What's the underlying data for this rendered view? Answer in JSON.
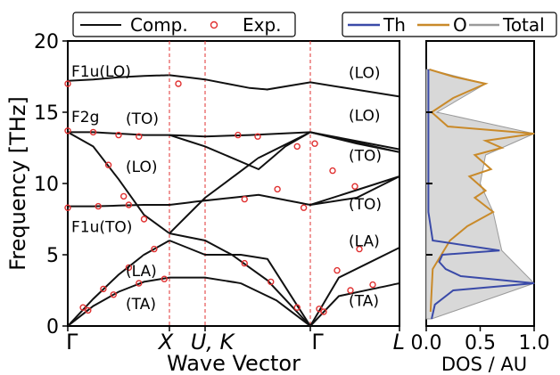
{
  "chart_data": [
    {
      "type": "line",
      "xlabel": "Wave Vector",
      "ylabel": "Frequency [THz]",
      "ylim": [
        0,
        20
      ],
      "yticks": [
        "0",
        "5",
        "10",
        "15",
        "20"
      ],
      "path_labels": [
        "Γ",
        "X",
        "U, K",
        "Γ",
        "L"
      ],
      "legend": {
        "placement": "top",
        "entries": [
          "Comp.",
          "Exp."
        ]
      },
      "annotations": [
        "F1u(LO)",
        "F2g",
        "(TO)",
        "(LO)",
        "F1u(TO)",
        "(LA)",
        "(TA)",
        "(LO)",
        "(LO)",
        "(TO)",
        "(TO)",
        "(LA)",
        "(TA)"
      ],
      "colors": {
        "computed": "#111111",
        "experimental": "#e03030",
        "guides": "#e03030"
      },
      "series": [
        {
          "name": "Comp.",
          "segments": [
            {
              "leg": "Γ-X",
              "x": [
                0,
                0.25,
                0.5,
                0.75,
                1
              ],
              "y": [
                17.2,
                17.3,
                17.45,
                17.55,
                17.6
              ]
            },
            {
              "leg": "Γ-X",
              "x": [
                0,
                0.25,
                0.5,
                0.75,
                1
              ],
              "y": [
                13.6,
                13.6,
                13.5,
                13.4,
                13.4
              ]
            },
            {
              "leg": "Γ-X",
              "x": [
                0,
                0.25,
                0.5,
                0.75,
                1
              ],
              "y": [
                13.6,
                12.6,
                10.3,
                7.8,
                6.5
              ]
            },
            {
              "leg": "Γ-X",
              "x": [
                0,
                0.25,
                0.5,
                0.75,
                1
              ],
              "y": [
                8.4,
                8.4,
                8.45,
                8.5,
                8.5
              ]
            },
            {
              "leg": "Γ-X",
              "x": [
                0,
                0.25,
                0.5,
                0.75,
                1
              ],
              "y": [
                0,
                1.9,
                3.6,
                5.0,
                6.0
              ]
            },
            {
              "leg": "Γ-X",
              "x": [
                0,
                0.25,
                0.5,
                0.75,
                1
              ],
              "y": [
                0,
                1.4,
                2.4,
                3.1,
                3.4
              ]
            }
          ]
        },
        {
          "name": "Exp.",
          "points": [
            {
              "x": 0.0,
              "y": 17.0
            },
            {
              "x": 0.0,
              "y": 13.7
            },
            {
              "x": 0.0,
              "y": 8.3
            },
            {
              "x": 0.25,
              "y": 13.6
            },
            {
              "x": 0.5,
              "y": 13.4
            },
            {
              "x": 0.7,
              "y": 13.3
            },
            {
              "x": 0.4,
              "y": 11.3
            },
            {
              "x": 0.55,
              "y": 9.1
            },
            {
              "x": 0.75,
              "y": 7.5
            },
            {
              "x": 0.3,
              "y": 8.4
            },
            {
              "x": 0.6,
              "y": 8.5
            },
            {
              "x": 0.15,
              "y": 1.3
            },
            {
              "x": 0.35,
              "y": 2.6
            },
            {
              "x": 0.6,
              "y": 4.1
            },
            {
              "x": 0.85,
              "y": 5.4
            },
            {
              "x": 0.2,
              "y": 1.1
            },
            {
              "x": 0.45,
              "y": 2.2
            },
            {
              "x": 0.7,
              "y": 3.0
            },
            {
              "x": 0.95,
              "y": 3.3
            },
            {
              "x": 1.45,
              "y": 13.4
            },
            {
              "x": 1.6,
              "y": 13.3
            },
            {
              "x": 1.9,
              "y": 12.6
            },
            {
              "x": 1.5,
              "y": 8.9
            },
            {
              "x": 1.75,
              "y": 9.6
            },
            {
              "x": 1.95,
              "y": 8.3
            },
            {
              "x": 1.5,
              "y": 4.4
            },
            {
              "x": 1.7,
              "y": 3.1
            },
            {
              "x": 1.9,
              "y": 1.3
            },
            {
              "x": 2.05,
              "y": 12.8
            },
            {
              "x": 2.25,
              "y": 10.9
            },
            {
              "x": 2.5,
              "y": 9.8
            },
            {
              "x": 2.1,
              "y": 1.2
            },
            {
              "x": 2.3,
              "y": 3.9
            },
            {
              "x": 2.55,
              "y": 5.4
            },
            {
              "x": 2.15,
              "y": 1.0
            },
            {
              "x": 2.45,
              "y": 2.5
            },
            {
              "x": 2.7,
              "y": 2.9
            },
            {
              "x": 1.05,
              "y": 17.0
            }
          ]
        }
      ]
    },
    {
      "type": "line",
      "xlabel": "DOS / AU",
      "xlim": [
        0,
        1
      ],
      "xticks": [
        "0.0",
        "0.5",
        "1.0"
      ],
      "ylim": [
        0,
        20
      ],
      "legend": {
        "placement": "top",
        "entries": [
          "Th",
          "O",
          "Total"
        ]
      },
      "colors": {
        "Th": "#3a4aa8",
        "O": "#c98a2a",
        "Total": "#9a9a9a",
        "fill": "#d8d8d8"
      },
      "series": [
        {
          "name": "Th",
          "y": [
            0.5,
            1.5,
            2.5,
            3.0,
            3.5,
            4.0,
            4.5,
            5.0,
            5.3,
            6.0,
            8.0,
            10.0,
            12.0,
            14.0,
            16.0,
            18.0
          ],
          "x": [
            0.05,
            0.08,
            0.25,
            1.0,
            0.32,
            0.18,
            0.12,
            0.15,
            0.68,
            0.06,
            0.02,
            0.02,
            0.02,
            0.02,
            0.02,
            0.02
          ]
        },
        {
          "name": "O",
          "y": [
            1.0,
            4.0,
            6.0,
            7.0,
            8.0,
            9.0,
            9.5,
            10.5,
            11.0,
            12.0,
            12.5,
            13.0,
            13.5,
            14.0,
            15.0,
            16.0,
            17.0,
            17.5,
            18.0
          ],
          "x": [
            0.04,
            0.06,
            0.22,
            0.38,
            0.62,
            0.45,
            0.55,
            0.4,
            0.6,
            0.45,
            0.7,
            0.55,
            1.0,
            0.2,
            0.05,
            0.25,
            0.55,
            0.25,
            0.03
          ]
        },
        {
          "name": "Total",
          "y": [
            0.5,
            3.0,
            5.3,
            8.0,
            10.0,
            12.0,
            13.5,
            15.0,
            17.0,
            18.0
          ],
          "x": [
            0.05,
            1.0,
            0.7,
            0.62,
            0.5,
            0.55,
            1.0,
            0.1,
            0.55,
            0.03
          ]
        }
      ]
    }
  ]
}
